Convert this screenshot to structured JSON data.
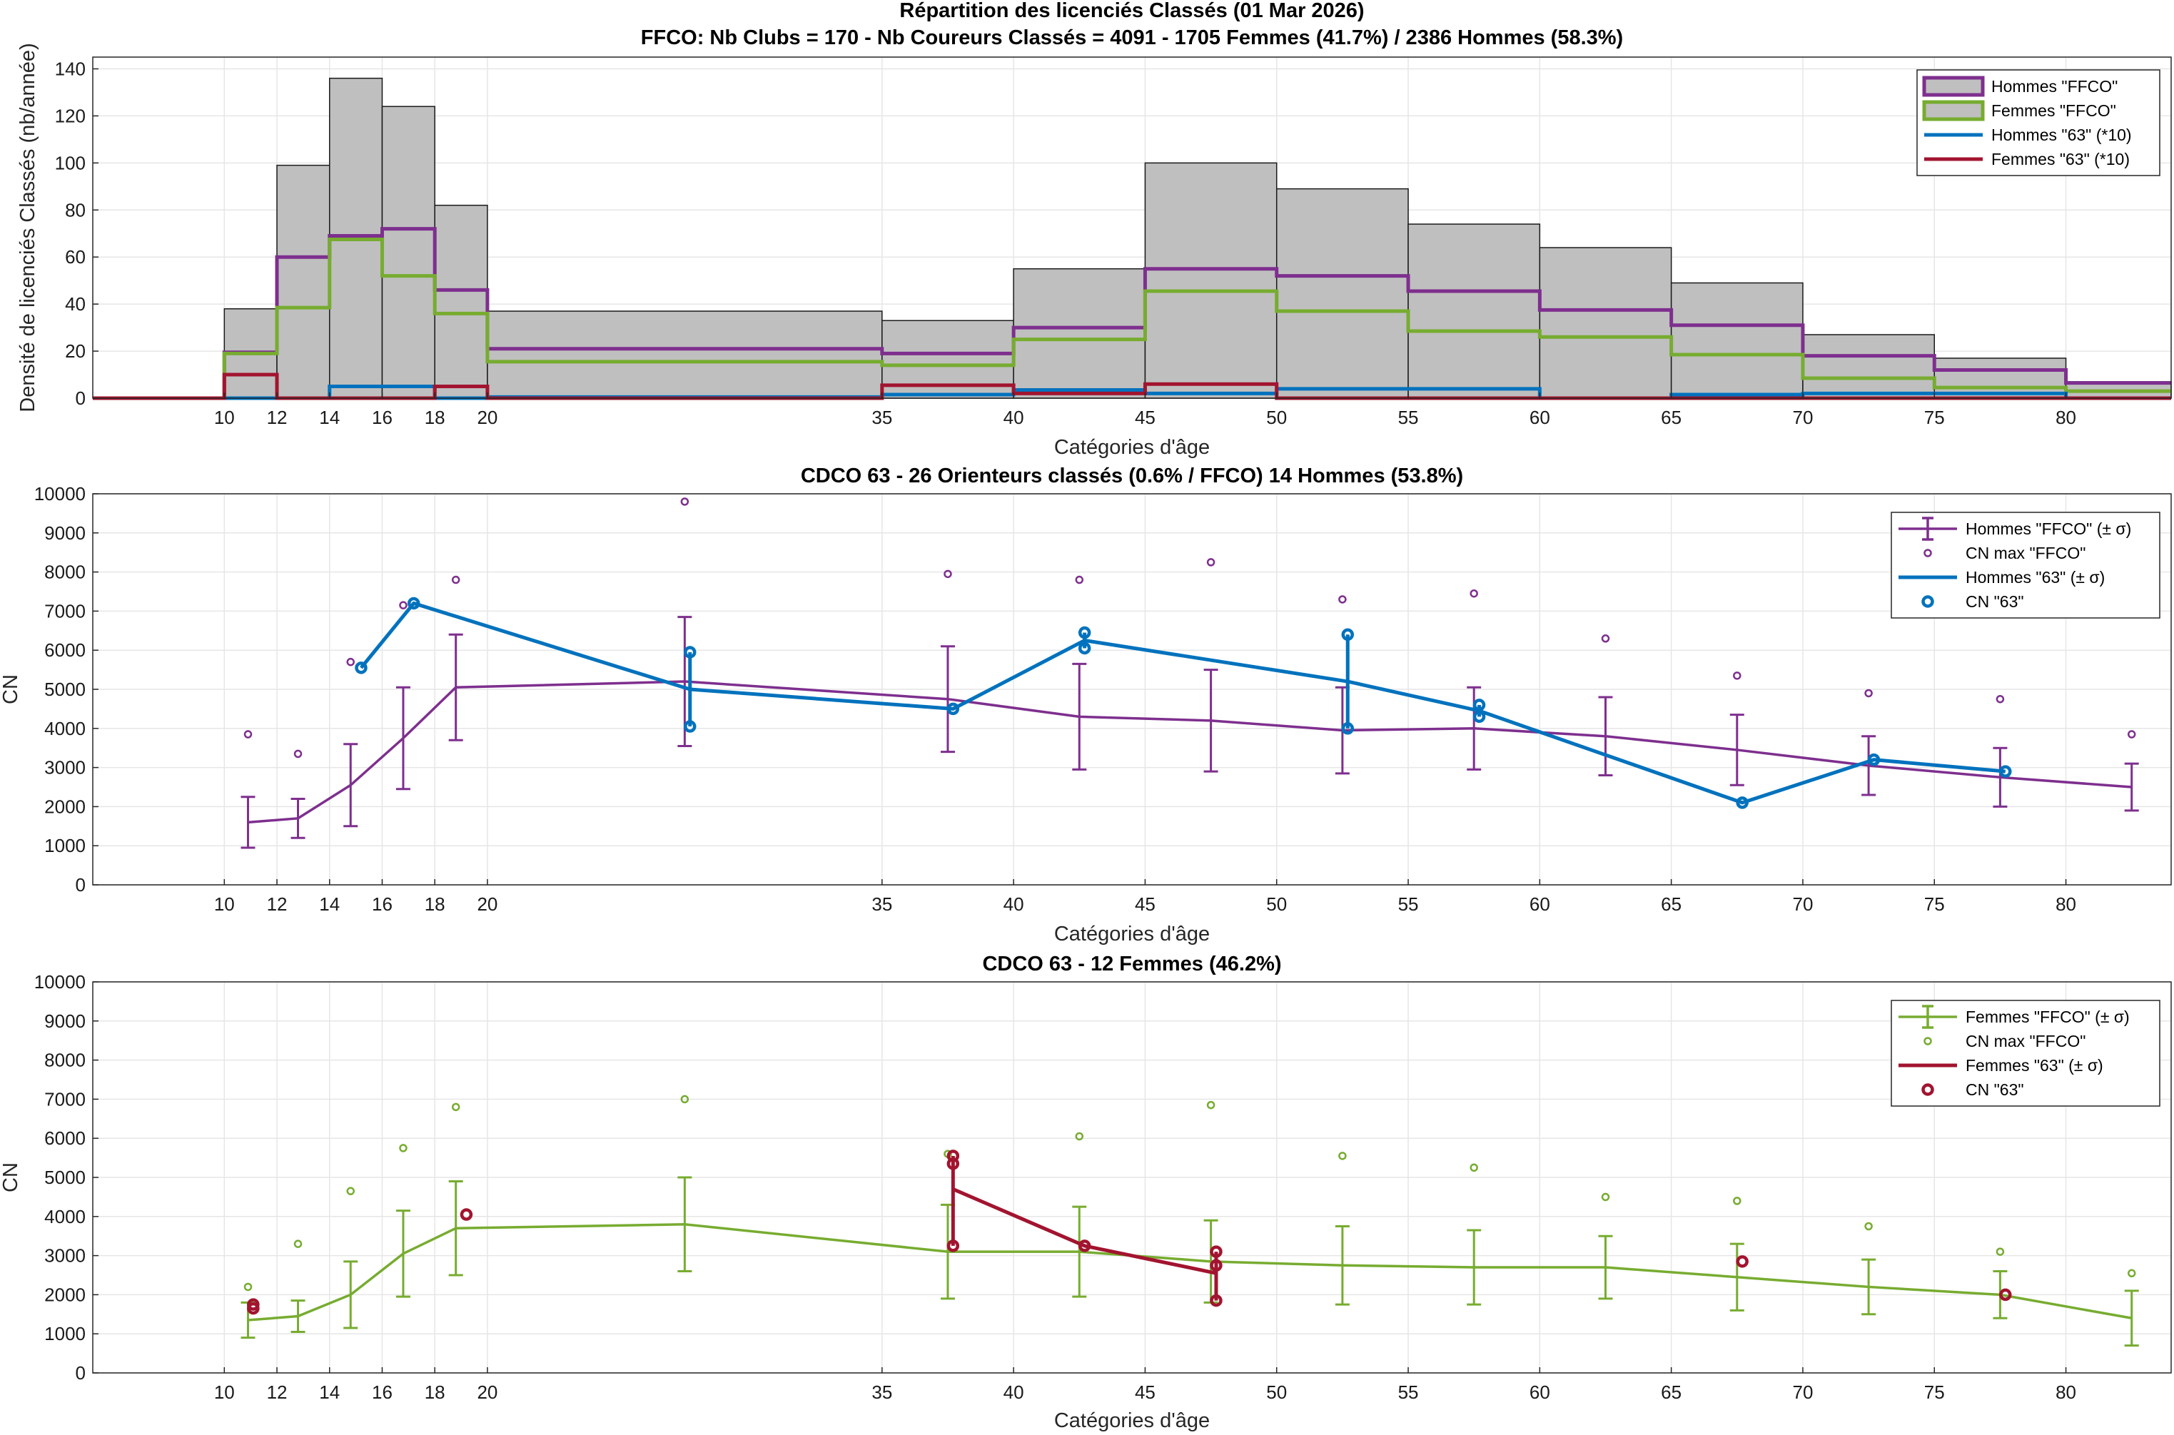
{
  "colors": {
    "hommes_ffco": "#7E2F8E",
    "femmes_ffco": "#77AC30",
    "hommes_63": "#0072BD",
    "femmes_63": "#A2142F",
    "hist_fill": "#BFBFBF",
    "grid": "#E6E6E6"
  },
  "chart_data": [
    {
      "type": "histogram-step",
      "title": "Répartition des licenciés Classés (01 Mar 2026)",
      "subtitle": "FFCO: Nb Clubs = 170   -   Nb Coureurs Classés = 4091   -   1705 Femmes (41.7%) / 2386 Hommes (58.3%)",
      "xlabel": "Catégories d'âge",
      "ylabel": "Densité de licenciés Classés (nb/année)",
      "xlim": [
        5,
        84
      ],
      "ylim": [
        0,
        145
      ],
      "xticks": [
        10,
        12,
        14,
        16,
        18,
        20,
        35,
        40,
        45,
        50,
        55,
        60,
        65,
        70,
        75,
        80
      ],
      "yticks": [
        0,
        20,
        40,
        60,
        80,
        100,
        120,
        140
      ],
      "grid": true,
      "legend_position": "top-right",
      "bins": [
        10,
        12,
        14,
        16,
        18,
        20,
        35,
        40,
        45,
        50,
        55,
        60,
        65,
        70,
        75,
        80,
        84
      ],
      "total": [
        38,
        99,
        136,
        124,
        82,
        37,
        33,
        55,
        100,
        89,
        74,
        64,
        49,
        27,
        17,
        7
      ],
      "series": [
        {
          "name": "Hommes \"FFCO\"",
          "values": [
            19.5,
            60,
            69,
            72,
            46,
            21,
            19,
            30,
            55,
            52,
            45.5,
            37.5,
            31,
            18,
            12,
            6.5
          ]
        },
        {
          "name": "Femmes \"FFCO\"",
          "values": [
            19,
            38.5,
            67.5,
            52,
            36,
            15.5,
            14,
            25,
            45.5,
            37,
            28.5,
            26,
            18.5,
            8.5,
            4.5,
            3
          ]
        },
        {
          "name": "Hommes \"63\" (*10)",
          "values": [
            0,
            0,
            5,
            5,
            0,
            0.5,
            1.5,
            3.5,
            2,
            4,
            4,
            0,
            1.5,
            2,
            2,
            0
          ]
        },
        {
          "name": "Femmes \"63\" (*10)",
          "values": [
            10,
            0,
            0,
            0,
            5,
            0,
            5.5,
            2,
            6,
            0,
            0,
            0,
            0,
            0,
            0,
            0
          ]
        }
      ]
    },
    {
      "type": "line-errorbar",
      "title": "CDCO 63  -  26 Orienteurs classés (0.6% / FFCO)  14 Hommes (53.8%)",
      "xlabel": "Catégories d'âge",
      "ylabel": "CN",
      "xlim": [
        5,
        84
      ],
      "ylim": [
        0,
        10000
      ],
      "xticks": [
        10,
        12,
        14,
        16,
        18,
        20,
        35,
        40,
        45,
        50,
        55,
        60,
        65,
        70,
        75,
        80
      ],
      "yticks": [
        0,
        1000,
        2000,
        3000,
        4000,
        5000,
        6000,
        7000,
        8000,
        9000,
        10000
      ],
      "grid": true,
      "legend_position": "top-right",
      "legend": [
        "Hommes \"FFCO\" (± σ)",
        "CN max \"FFCO\"",
        "Hommes \"63\" (± σ)",
        "CN \"63\""
      ],
      "ffco_mean": {
        "x": [
          10.9,
          12.8,
          14.8,
          16.8,
          18.8,
          27.5,
          37.5,
          42.5,
          47.5,
          52.5,
          57.5,
          62.5,
          67.5,
          72.5,
          77.5,
          82.5
        ],
        "y": [
          1600,
          1700,
          2550,
          3750,
          5050,
          5200,
          4750,
          4300,
          4200,
          3950,
          4000,
          3800,
          3450,
          3050,
          2750,
          2500
        ],
        "sigma": [
          650,
          500,
          1050,
          1300,
          1350,
          1650,
          1350,
          1350,
          1300,
          1100,
          1050,
          1000,
          900,
          750,
          750,
          600
        ]
      },
      "ffco_max": {
        "x": [
          10.9,
          12.8,
          14.8,
          16.8,
          18.8,
          27.5,
          37.5,
          42.5,
          47.5,
          52.5,
          57.5,
          62.5,
          67.5,
          72.5,
          77.5,
          82.5
        ],
        "y": [
          3850,
          3350,
          5700,
          7150,
          7800,
          9800,
          7950,
          7800,
          8250,
          7300,
          7450,
          6300,
          5350,
          4900,
          4750,
          3850
        ]
      },
      "local_line": {
        "x": [
          15.2,
          17.2,
          27.7,
          37.7,
          42.7,
          52.7,
          57.7,
          67.7,
          72.7,
          77.7
        ],
        "y": [
          5550,
          7200,
          5000,
          4500,
          6250,
          5200,
          4450,
          2100,
          3200,
          2900
        ]
      },
      "local_error": [
        {
          "x": 27.7,
          "low": 4050,
          "high": 5950
        },
        {
          "x": 42.7,
          "low": 6050,
          "high": 6450
        },
        {
          "x": 52.7,
          "low": 4000,
          "high": 6400
        },
        {
          "x": 57.7,
          "low": 4300,
          "high": 4600
        }
      ],
      "local_points": {
        "x": [
          15.2,
          17.2,
          27.7,
          27.7,
          37.7,
          42.7,
          42.7,
          52.7,
          52.7,
          57.7,
          57.7,
          67.7,
          72.7,
          77.7
        ],
        "y": [
          5550,
          7200,
          5950,
          4050,
          4500,
          6450,
          6050,
          6400,
          4000,
          4600,
          4300,
          2100,
          3200,
          2900
        ]
      }
    },
    {
      "type": "line-errorbar",
      "title": "CDCO 63  -  12 Femmes (46.2%)",
      "xlabel": "Catégories d'âge",
      "ylabel": "CN",
      "xlim": [
        5,
        84
      ],
      "ylim": [
        0,
        10000
      ],
      "xticks": [
        10,
        12,
        14,
        16,
        18,
        20,
        35,
        40,
        45,
        50,
        55,
        60,
        65,
        70,
        75,
        80
      ],
      "yticks": [
        0,
        1000,
        2000,
        3000,
        4000,
        5000,
        6000,
        7000,
        8000,
        9000,
        10000
      ],
      "grid": true,
      "legend_position": "top-right",
      "legend": [
        "Femmes \"FFCO\" (± σ)",
        "CN max \"FFCO\"",
        "Femmes \"63\" (± σ)",
        "CN \"63\""
      ],
      "ffco_mean": {
        "x": [
          10.9,
          12.8,
          14.8,
          16.8,
          18.8,
          27.5,
          37.5,
          42.5,
          47.5,
          52.5,
          57.5,
          62.5,
          67.5,
          72.5,
          77.5,
          82.5
        ],
        "y": [
          1350,
          1450,
          2000,
          3050,
          3700,
          3800,
          3100,
          3100,
          2850,
          2750,
          2700,
          2700,
          2450,
          2200,
          2000,
          1400
        ],
        "sigma": [
          450,
          400,
          850,
          1100,
          1200,
          1200,
          1200,
          1150,
          1050,
          1000,
          950,
          800,
          850,
          700,
          600,
          700
        ]
      },
      "ffco_max": {
        "x": [
          10.9,
          12.8,
          14.8,
          16.8,
          18.8,
          27.5,
          37.5,
          42.5,
          47.5,
          52.5,
          57.5,
          62.5,
          67.5,
          72.5,
          77.5,
          82.5
        ],
        "y": [
          2200,
          3300,
          4650,
          5750,
          6800,
          7000,
          5600,
          6050,
          6850,
          5550,
          5250,
          4500,
          4400,
          3750,
          3100,
          2550
        ]
      },
      "local_line": {
        "x": [
          37.7,
          42.7,
          47.7
        ],
        "y": [
          4700,
          3250,
          2550
        ]
      },
      "local_error": [
        {
          "x": 37.7,
          "low": 3250,
          "high": 5550
        },
        {
          "x": 47.7,
          "low": 1850,
          "high": 3100
        }
      ],
      "local_points": {
        "x": [
          11.1,
          11.1,
          19.2,
          37.7,
          37.7,
          37.7,
          42.7,
          47.7,
          47.7,
          47.7,
          67.7,
          77.7
        ],
        "y": [
          1750,
          1650,
          4050,
          5550,
          5350,
          3250,
          3250,
          3100,
          2750,
          1850,
          2850,
          2000
        ]
      }
    }
  ]
}
